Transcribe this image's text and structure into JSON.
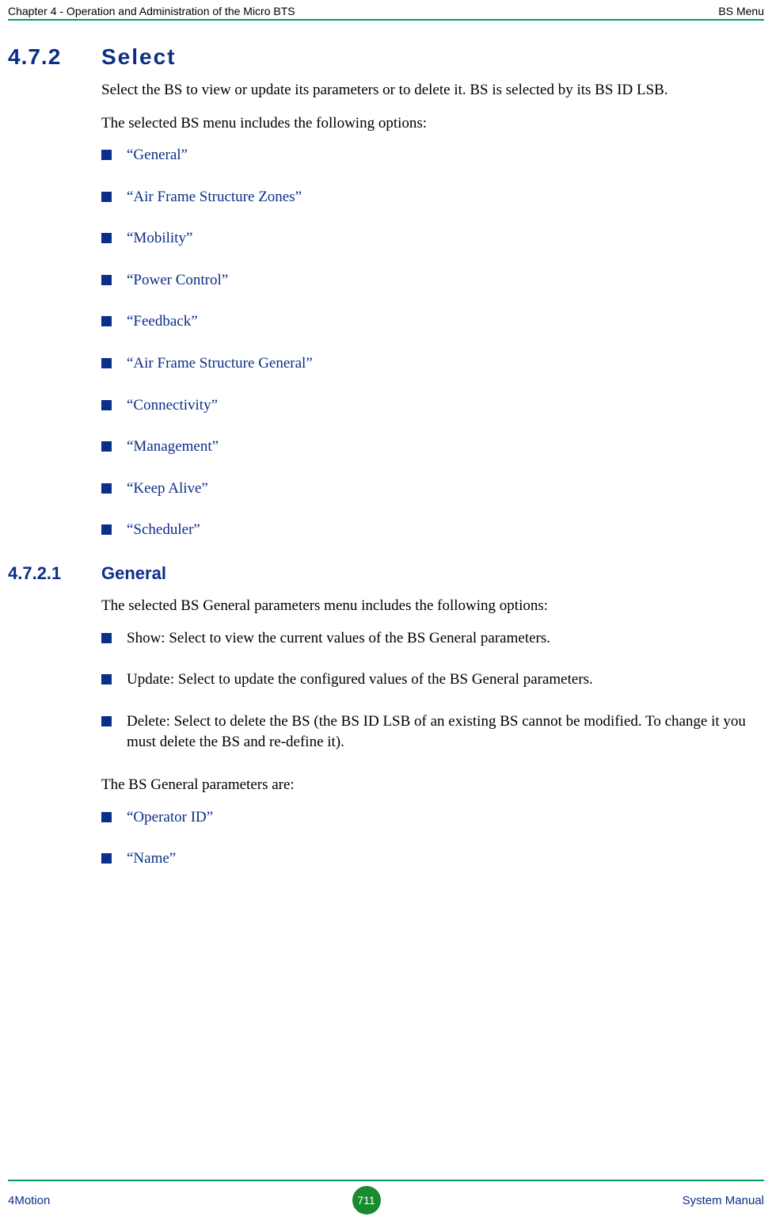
{
  "header": {
    "left": "Chapter 4 - Operation and Administration of the Micro BTS",
    "right": "BS Menu"
  },
  "section": {
    "number": "4.7.2",
    "title": "Select",
    "intro1": "Select the BS to view or update its parameters or to delete it. BS is selected by its BS ID LSB.",
    "intro2": "The selected BS menu includes the following options:",
    "options": [
      "“General”",
      "“Air Frame Structure Zones”",
      "“Mobility”",
      "“Power Control”",
      "“Feedback”",
      "“Air Frame Structure General”",
      "“Connectivity”",
      "“Management”",
      "“Keep Alive”",
      "“Scheduler”"
    ]
  },
  "subsection": {
    "number": "4.7.2.1",
    "title": "General",
    "intro": "The selected BS General parameters menu includes the following options:",
    "actions": [
      "Show: Select to view the current values of the BS General parameters.",
      "Update: Select to update the configured values of the BS General parameters.",
      "Delete: Select to delete the BS (the BS ID LSB of an existing BS cannot be modified. To change it you must delete the BS and re-define it)."
    ],
    "params_intro": "The BS General parameters are:",
    "params": [
      "“Operator ID”",
      "“Name”"
    ]
  },
  "footer": {
    "left": "4Motion",
    "page": "711",
    "right": "System Manual"
  },
  "colors": {
    "accent_blue": "#0b2e89",
    "rule_green": "#009966",
    "badge_green": "#1a8a2e",
    "text_black": "#000000",
    "background": "#ffffff"
  }
}
